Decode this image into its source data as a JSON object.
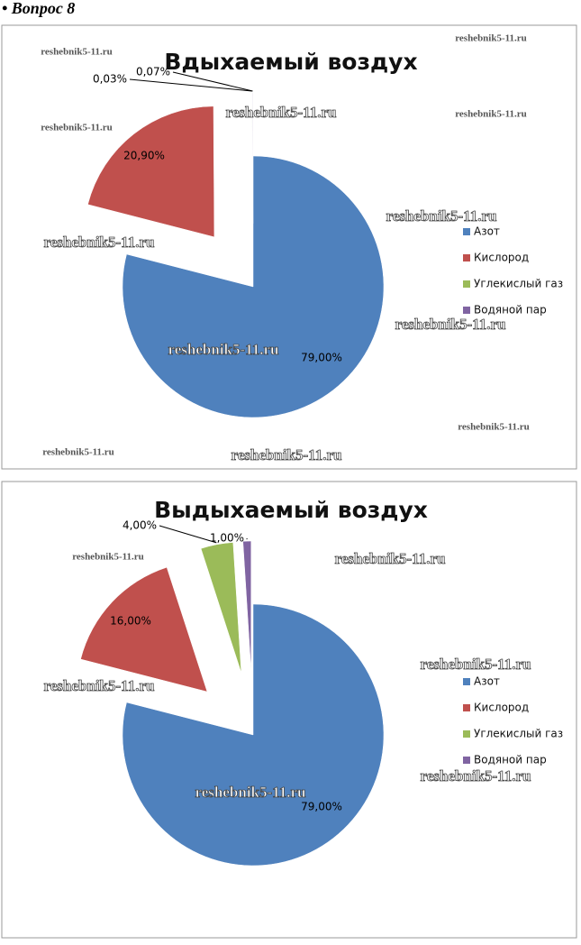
{
  "heading": "• Вопрос 8",
  "watermark": "reshebnik5-11.ru",
  "chart_data": [
    {
      "type": "pie",
      "title": "Вдыхаемый воздух",
      "categories": [
        "Азот",
        "Кислород",
        "Углекислый газ",
        "Водяной пар"
      ],
      "values": [
        79,
        20.9,
        0.03,
        0.07
      ],
      "value_labels": [
        "79,00%",
        "20,90%",
        "0,03%",
        "0,07%"
      ],
      "colors": [
        "#4f81bd",
        "#c0504d",
        "#9bbb59",
        "#8064a2"
      ]
    },
    {
      "type": "pie",
      "title": "Выдыхаемый воздух",
      "categories": [
        "Азот",
        "Кислород",
        "Углекислый газ",
        "Водяной пар"
      ],
      "values": [
        79,
        16,
        4,
        1
      ],
      "value_labels": [
        "79,00%",
        "16,00%",
        "4,00%",
        "1,00%"
      ],
      "colors": [
        "#4f81bd",
        "#c0504d",
        "#9bbb59",
        "#8064a2"
      ]
    }
  ]
}
